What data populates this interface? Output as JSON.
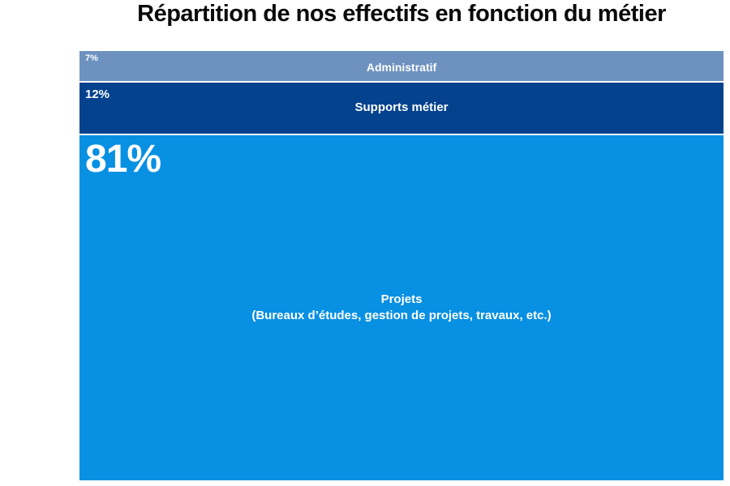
{
  "page": {
    "title": "Répartition de nos effectifs en fonction du métier",
    "background_color": "#ffffff"
  },
  "chart_data": {
    "type": "bar",
    "variant": "100-percent-stacked-single-column",
    "title": "Répartition de nos effectifs en fonction du métier",
    "orientation": "vertical, segments stacked top to bottom",
    "categories": [
      "Administratif",
      "Supports métier",
      "Projets (Bureaux d’études, gestion de projets, travaux, etc.)"
    ],
    "values": [
      7,
      12,
      81
    ],
    "unit": "%",
    "colors": [
      "#6d92c0",
      "#04428e",
      "#0890e2"
    ],
    "data_labels": [
      "7%",
      "12%",
      "81%"
    ],
    "label_text_color": "#ffffff",
    "legend": "none",
    "axes_visible": false,
    "grid": false
  },
  "segments": [
    {
      "pct_label": "7%",
      "name": "Administratif"
    },
    {
      "pct_label": "12%",
      "name": "Supports métier"
    },
    {
      "pct_label": "81%",
      "name_line1": "Projets",
      "name_line2": "(Bureaux d’études, gestion de projets, travaux, etc.)"
    }
  ]
}
